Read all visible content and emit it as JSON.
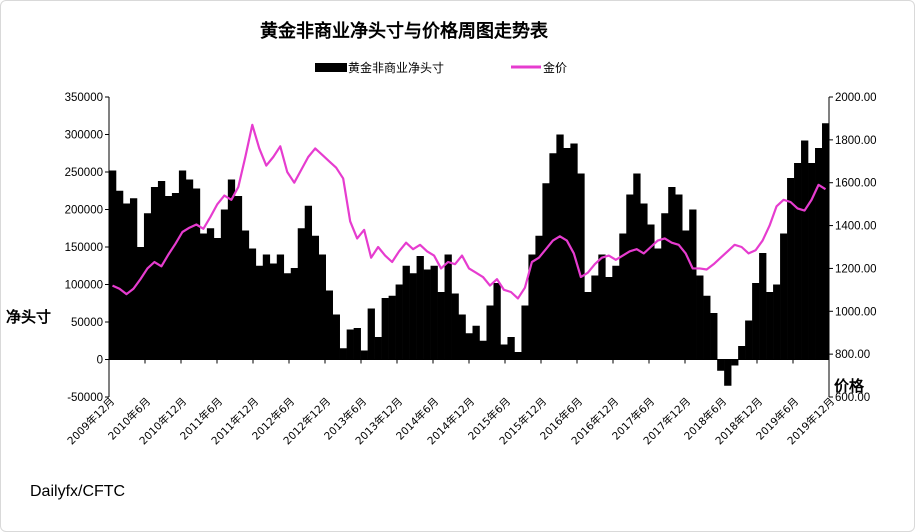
{
  "chart_data": {
    "type": "bar+line",
    "title": "黄金非商业净头寸与价格周图走势表",
    "legend": [
      "黄金非商业净头寸",
      "金价"
    ],
    "legend_placement": "top",
    "left_axis": {
      "title": "净头寸",
      "min": -50000,
      "max": 350000,
      "ticks": [
        -50000,
        0,
        50000,
        100000,
        150000,
        200000,
        250000,
        300000,
        350000
      ]
    },
    "right_axis": {
      "title": "价格",
      "min": 600,
      "max": 2000,
      "ticks": [
        "600.00",
        "800.00",
        "1000.00",
        "1200.00",
        "1400.00",
        "1600.00",
        "1800.00",
        "2000.00"
      ]
    },
    "x_labels": [
      "2009年12月",
      "2010年6月",
      "2010年12月",
      "2011年6月",
      "2011年12月",
      "2012年6月",
      "2012年12月",
      "2013年6月",
      "2013年12月",
      "2014年6月",
      "2014年12月",
      "2015年6月",
      "2015年12月",
      "2016年6月",
      "2016年12月",
      "2017年6月",
      "2017年12月",
      "2018年6月",
      "2018年12月",
      "2019年6月",
      "2019年12月"
    ],
    "series": [
      {
        "name": "黄金非商业净头寸",
        "type": "bar",
        "color": "#000000",
        "values": [
          252000,
          225000,
          208000,
          215000,
          150000,
          195000,
          230000,
          238000,
          218000,
          222000,
          252000,
          240000,
          228000,
          168000,
          175000,
          162000,
          200000,
          240000,
          218000,
          172000,
          148000,
          125000,
          140000,
          128000,
          140000,
          115000,
          122000,
          175000,
          205000,
          165000,
          140000,
          92000,
          60000,
          15000,
          40000,
          42000,
          12000,
          68000,
          30000,
          82000,
          85000,
          100000,
          125000,
          115000,
          138000,
          120000,
          125000,
          90000,
          140000,
          88000,
          60000,
          35000,
          45000,
          25000,
          72000,
          102000,
          20000,
          30000,
          10000,
          72000,
          140000,
          165000,
          235000,
          275000,
          300000,
          282000,
          288000,
          248000,
          90000,
          112000,
          140000,
          110000,
          125000,
          168000,
          220000,
          248000,
          208000,
          180000,
          148000,
          195000,
          230000,
          220000,
          172000,
          200000,
          112000,
          85000,
          62000,
          -15000,
          -35000,
          -8000,
          18000,
          52000,
          102000,
          142000,
          90000,
          100000,
          168000,
          242000,
          262000,
          292000,
          262000,
          282000,
          315000
        ]
      },
      {
        "name": "金价",
        "type": "line",
        "color": "#e63ccf",
        "values": [
          1120,
          1105,
          1080,
          1105,
          1150,
          1200,
          1230,
          1210,
          1265,
          1315,
          1370,
          1390,
          1405,
          1385,
          1440,
          1500,
          1540,
          1520,
          1580,
          1720,
          1870,
          1760,
          1680,
          1720,
          1770,
          1650,
          1600,
          1660,
          1720,
          1760,
          1730,
          1700,
          1670,
          1620,
          1420,
          1340,
          1380,
          1250,
          1300,
          1260,
          1230,
          1280,
          1320,
          1290,
          1310,
          1280,
          1260,
          1200,
          1230,
          1220,
          1260,
          1200,
          1180,
          1160,
          1120,
          1150,
          1100,
          1090,
          1060,
          1110,
          1230,
          1250,
          1290,
          1330,
          1350,
          1330,
          1270,
          1160,
          1180,
          1220,
          1250,
          1260,
          1240,
          1260,
          1280,
          1290,
          1270,
          1300,
          1330,
          1340,
          1320,
          1310,
          1270,
          1200,
          1200,
          1195,
          1220,
          1250,
          1280,
          1310,
          1300,
          1270,
          1285,
          1330,
          1400,
          1490,
          1520,
          1510,
          1480,
          1470,
          1520,
          1590,
          1570
        ]
      }
    ],
    "grid": false
  },
  "source_label": "Dailyfx/CFTC"
}
